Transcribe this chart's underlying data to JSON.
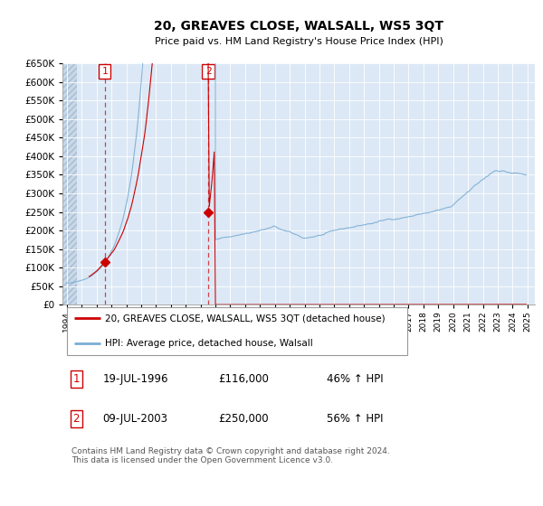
{
  "title": "20, GREAVES CLOSE, WALSALL, WS5 3QT",
  "subtitle": "Price paid vs. HM Land Registry's House Price Index (HPI)",
  "property_label": "20, GREAVES CLOSE, WALSALL, WS5 3QT (detached house)",
  "hpi_label": "HPI: Average price, detached house, Walsall",
  "footnote": "Contains HM Land Registry data © Crown copyright and database right 2024.\nThis data is licensed under the Open Government Licence v3.0.",
  "sale_markers": [
    {
      "date_num": 1996.54,
      "price": 116000,
      "label": "1"
    },
    {
      "date_num": 2003.52,
      "price": 250000,
      "label": "2"
    }
  ],
  "sale_table": [
    {
      "num": "1",
      "date": "19-JUL-1996",
      "price": "£116,000",
      "hpi": "46% ↑ HPI"
    },
    {
      "num": "2",
      "date": "09-JUL-2003",
      "price": "£250,000",
      "hpi": "56% ↑ HPI"
    }
  ],
  "property_color": "#cc0000",
  "hpi_color": "#7aadd4",
  "dashed_line_color": "#cc4444",
  "background_color": "#dce8f5",
  "ylim": [
    0,
    650000
  ],
  "yticks": [
    0,
    50000,
    100000,
    150000,
    200000,
    250000,
    300000,
    350000,
    400000,
    450000,
    500000,
    550000,
    600000,
    650000
  ],
  "xlim_start": 1993.7,
  "xlim_end": 2025.5,
  "xticks": [
    1994,
    1995,
    1996,
    1997,
    1998,
    1999,
    2000,
    2001,
    2002,
    2003,
    2004,
    2005,
    2006,
    2007,
    2008,
    2009,
    2010,
    2011,
    2012,
    2013,
    2014,
    2015,
    2016,
    2017,
    2018,
    2019,
    2020,
    2021,
    2022,
    2023,
    2024,
    2025
  ],
  "hatch_end": 1994.7
}
